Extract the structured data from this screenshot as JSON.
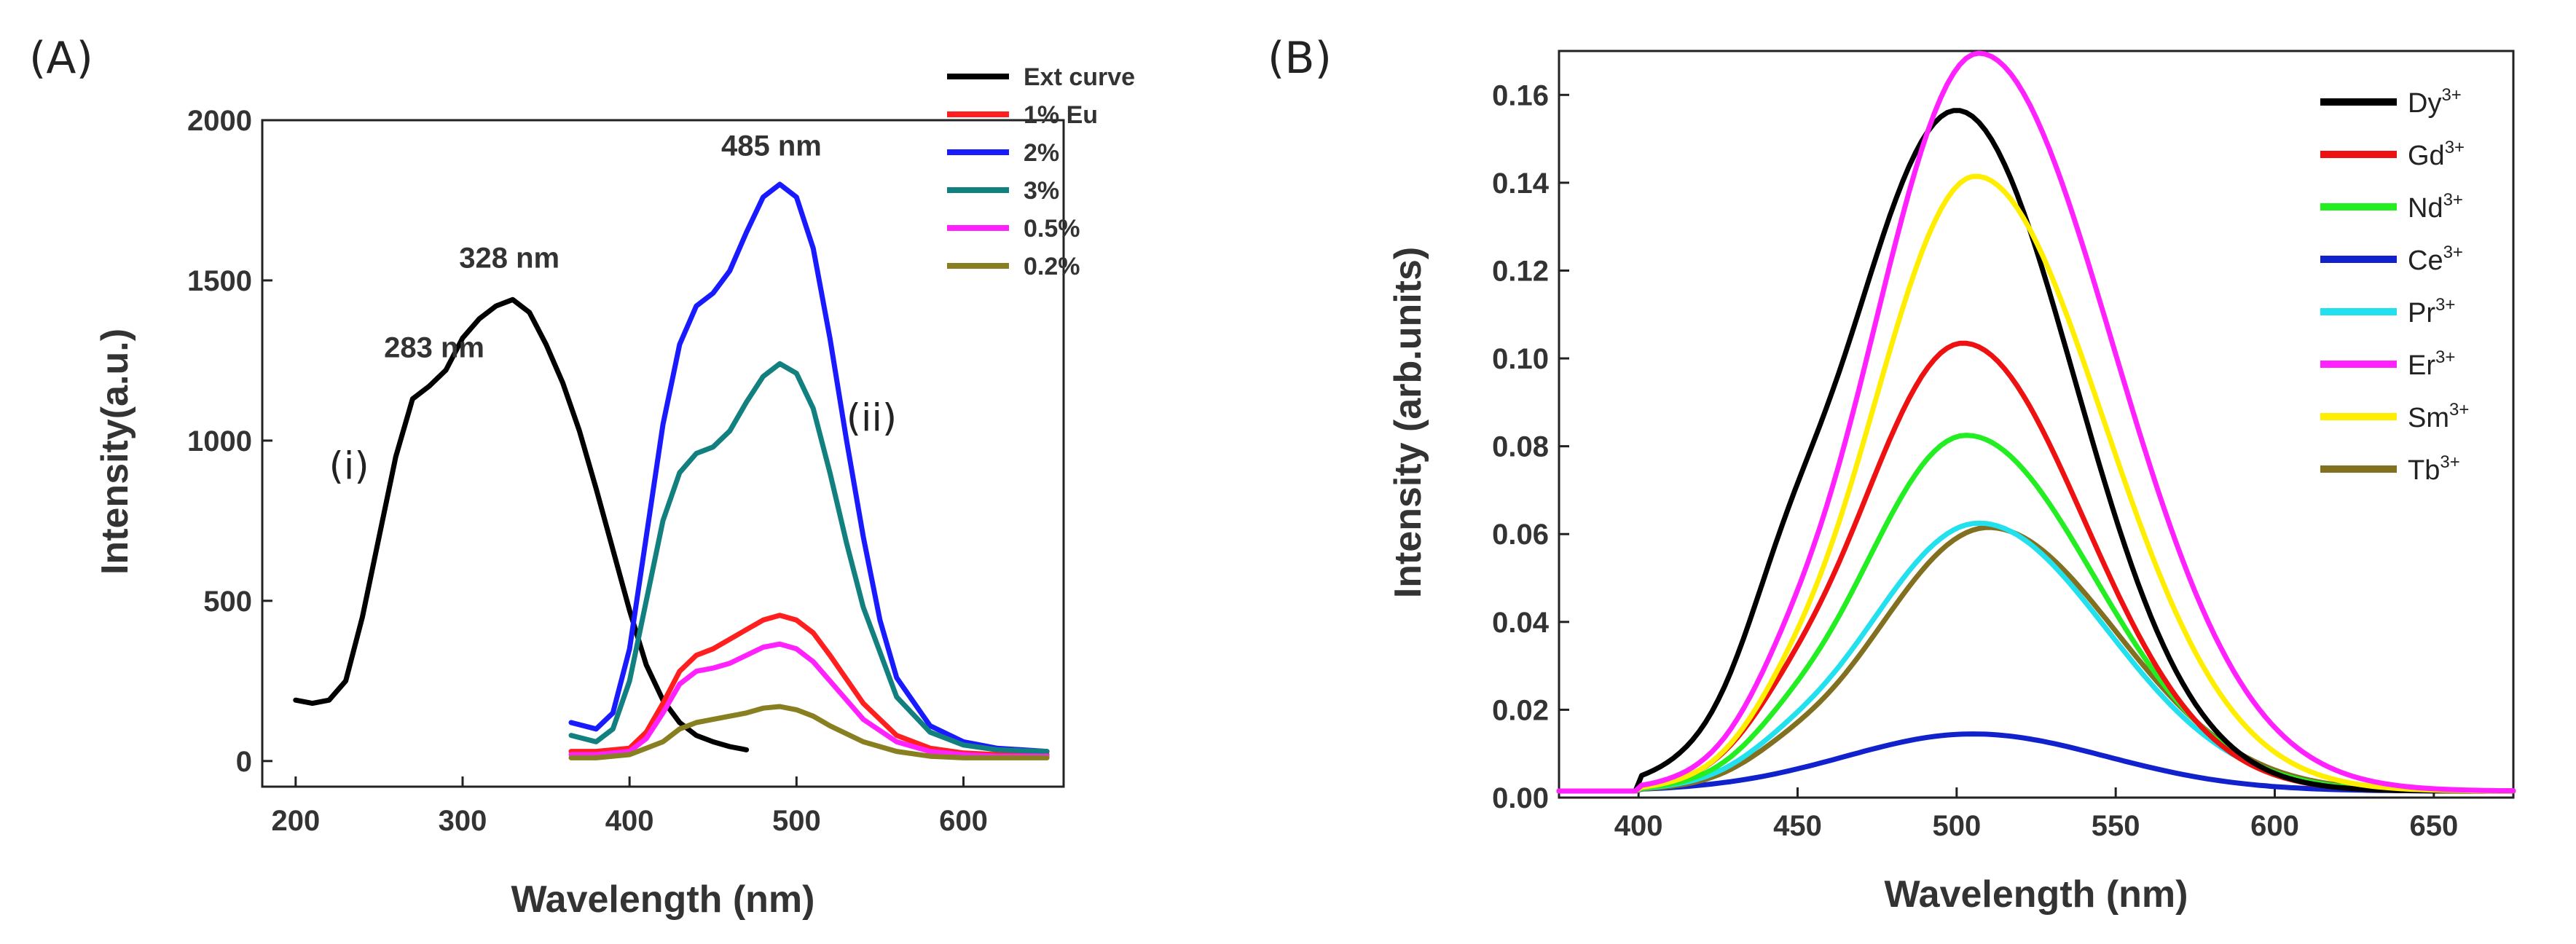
{
  "chart_data": [
    {
      "panel": "(A)",
      "type": "line",
      "xlabel": "Wavelength (nm)",
      "ylabel": "Intensity(a.u.)",
      "xlim": [
        180,
        660
      ],
      "ylim": [
        -80,
        2000
      ],
      "xticks": [
        "200",
        "300",
        "400",
        "500",
        "600"
      ],
      "yticks": [
        "0",
        "500",
        "1000",
        "1500",
        "2000"
      ],
      "legend_position": "top-right",
      "annotations": [
        {
          "text": "283 nm",
          "x": 283,
          "y": 1260
        },
        {
          "text": "328 nm",
          "x": 328,
          "y": 1540
        },
        {
          "text": "485 nm",
          "x": 485,
          "y": 1890
        },
        {
          "text": "(i)",
          "x": 232,
          "y": 880
        },
        {
          "text": "(ii)",
          "x": 545,
          "y": 1030
        }
      ],
      "series": [
        {
          "name": "Ext curve",
          "color": "#000000",
          "x": [
            200,
            210,
            220,
            230,
            240,
            250,
            260,
            270,
            280,
            290,
            300,
            310,
            320,
            330,
            340,
            350,
            360,
            370,
            380,
            390,
            400,
            410,
            420,
            430,
            440,
            450,
            460,
            470
          ],
          "y": [
            190,
            180,
            190,
            250,
            450,
            700,
            950,
            1130,
            1170,
            1220,
            1320,
            1380,
            1420,
            1440,
            1400,
            1300,
            1180,
            1030,
            850,
            660,
            470,
            300,
            190,
            120,
            80,
            60,
            45,
            35
          ]
        },
        {
          "name": "1% Eu",
          "color": "#ff1f1f",
          "x": [
            365,
            380,
            400,
            410,
            420,
            430,
            440,
            450,
            460,
            470,
            480,
            490,
            500,
            510,
            520,
            540,
            560,
            580,
            600,
            620,
            650
          ],
          "y": [
            30,
            30,
            40,
            90,
            180,
            280,
            330,
            350,
            380,
            410,
            440,
            455,
            440,
            400,
            330,
            180,
            80,
            40,
            25,
            20,
            20
          ]
        },
        {
          "name": "2%",
          "color": "#1a1aff",
          "x": [
            365,
            380,
            390,
            400,
            410,
            420,
            430,
            440,
            450,
            460,
            470,
            480,
            490,
            500,
            510,
            520,
            530,
            540,
            550,
            560,
            580,
            600,
            620,
            650
          ],
          "y": [
            120,
            100,
            150,
            350,
            700,
            1050,
            1300,
            1420,
            1460,
            1530,
            1650,
            1760,
            1800,
            1760,
            1600,
            1320,
            1000,
            700,
            440,
            260,
            110,
            60,
            40,
            30
          ]
        },
        {
          "name": "3%",
          "color": "#138080",
          "x": [
            365,
            380,
            390,
            400,
            410,
            420,
            430,
            440,
            450,
            460,
            470,
            480,
            490,
            500,
            510,
            520,
            530,
            540,
            560,
            580,
            600,
            620,
            650
          ],
          "y": [
            80,
            60,
            100,
            250,
            500,
            750,
            900,
            960,
            980,
            1030,
            1120,
            1200,
            1240,
            1210,
            1100,
            900,
            680,
            480,
            200,
            90,
            50,
            35,
            30
          ]
        },
        {
          "name": "0.5%",
          "color": "#ff22ff",
          "x": [
            365,
            380,
            400,
            410,
            420,
            430,
            440,
            450,
            460,
            470,
            480,
            490,
            500,
            510,
            520,
            540,
            560,
            580,
            600,
            620,
            650
          ],
          "y": [
            20,
            20,
            30,
            70,
            150,
            240,
            280,
            290,
            305,
            330,
            355,
            365,
            350,
            310,
            250,
            130,
            60,
            30,
            20,
            15,
            15
          ]
        },
        {
          "name": "0.2%",
          "color": "#888020",
          "x": [
            365,
            380,
            400,
            420,
            430,
            440,
            450,
            460,
            470,
            480,
            490,
            500,
            510,
            520,
            540,
            560,
            580,
            600,
            620,
            650
          ],
          "y": [
            10,
            10,
            20,
            60,
            100,
            120,
            130,
            140,
            150,
            165,
            170,
            160,
            140,
            110,
            60,
            30,
            15,
            10,
            10,
            10
          ]
        }
      ]
    },
    {
      "panel": "(B)",
      "type": "line",
      "xlabel": "Wavelength (nm)",
      "ylabel": "Intensity (arb.units)",
      "xlim": [
        375,
        675
      ],
      "ylim": [
        0,
        0.17
      ],
      "xticks": [
        "400",
        "450",
        "500",
        "550",
        "600",
        "650"
      ],
      "yticks": [
        "0.00",
        "0.02",
        "0.04",
        "0.06",
        "0.08",
        "0.10",
        "0.12",
        "0.14",
        "0.16"
      ],
      "legend_position": "top-right",
      "series": [
        {
          "name": "Dy",
          "sup": "3+",
          "color": "#000000",
          "peak": 0.155,
          "center": 500,
          "sigL": 36,
          "sigR": 37,
          "shoulder": 0.012
        },
        {
          "name": "Gd",
          "sup": "3+",
          "color": "#ee1111",
          "peak": 0.102,
          "center": 502,
          "sigL": 33,
          "sigR": 38,
          "shoulder": 0.004
        },
        {
          "name": "Nd",
          "sup": "3+",
          "color": "#22ee22",
          "peak": 0.081,
          "center": 503,
          "sigL": 33,
          "sigR": 40,
          "shoulder": 0.003
        },
        {
          "name": "Ce",
          "sup": "3+",
          "color": "#1122cc",
          "peak": 0.013,
          "center": 505,
          "sigL": 40,
          "sigR": 42,
          "shoulder": 0
        },
        {
          "name": "Pr",
          "sup": "3+",
          "color": "#22e0ee",
          "peak": 0.061,
          "center": 507,
          "sigL": 35,
          "sigR": 40,
          "shoulder": 0.002
        },
        {
          "name": "Er",
          "sup": "3+",
          "color": "#ff22ff",
          "peak": 0.168,
          "center": 507,
          "sigL": 34,
          "sigR": 42,
          "shoulder": 0.005
        },
        {
          "name": "Sm",
          "sup": "3+",
          "color": "#ffee00",
          "peak": 0.14,
          "center": 506,
          "sigL": 33,
          "sigR": 40,
          "shoulder": 0.004
        },
        {
          "name": "Tb",
          "sup": "3+",
          "color": "#807020",
          "peak": 0.06,
          "center": 510,
          "sigL": 35,
          "sigR": 40,
          "shoulder": 0.002
        }
      ]
    }
  ]
}
